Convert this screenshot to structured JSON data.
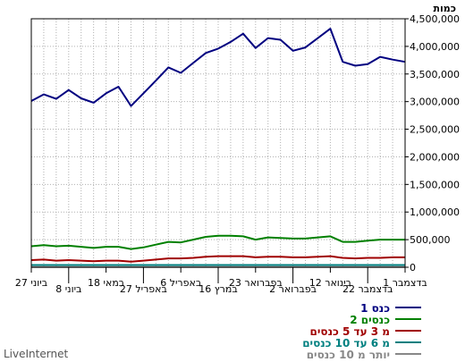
{
  "chart_data": {
    "type": "line",
    "unit_label": "כמות",
    "ylim": [
      0,
      4500000
    ],
    "y_ticks": [
      "0",
      "500,000",
      "1,000,000",
      "1,500,000",
      "2,000,000",
      "2,500,000",
      "3,000,000",
      "3,500,000",
      "4,000,000",
      "4,500,000"
    ],
    "grid": true,
    "x_labels_row1": [
      {
        "text": "1 בדצמבר",
        "week": 0
      },
      {
        "text": "12 בינואר",
        "week": 6
      },
      {
        "text": "23 בפברואר",
        "week": 12
      },
      {
        "text": "6 באפריל",
        "week": 18
      },
      {
        "text": "18 במאי",
        "week": 24
      },
      {
        "text": "27 ביוני",
        "week": 30
      }
    ],
    "x_labels_row2": [
      {
        "text": "22 בדצמבר",
        "week": 3
      },
      {
        "text": "2 בפברואר",
        "week": 9
      },
      {
        "text": "16 במרץ",
        "week": 15
      },
      {
        "text": "27 באפריל",
        "week": 21
      },
      {
        "text": "8 ביוני",
        "week": 27
      }
    ],
    "series": [
      {
        "name": "כנס 1",
        "color": "#000080",
        "values": [
          3720000,
          3760000,
          3810000,
          3680000,
          3650000,
          3720000,
          4320000,
          4150000,
          3980000,
          3920000,
          4120000,
          4150000,
          3970000,
          4230000,
          4080000,
          3960000,
          3880000,
          3700000,
          3520000,
          3620000,
          3380000,
          3150000,
          2920000,
          3270000,
          3150000,
          2980000,
          3060000,
          3210000,
          3050000,
          3130000,
          3010000
        ]
      },
      {
        "name": "2 כנסים",
        "color": "#008000",
        "values": [
          500000,
          500000,
          500000,
          480000,
          460000,
          460000,
          560000,
          540000,
          520000,
          520000,
          530000,
          540000,
          500000,
          560000,
          570000,
          570000,
          550000,
          500000,
          450000,
          460000,
          410000,
          360000,
          330000,
          370000,
          370000,
          350000,
          370000,
          390000,
          380000,
          400000,
          380000
        ]
      },
      {
        "name": "מ 3 עד 5 כנסים",
        "color": "#a00000",
        "values": [
          180000,
          180000,
          170000,
          170000,
          160000,
          170000,
          200000,
          190000,
          180000,
          180000,
          190000,
          190000,
          180000,
          200000,
          200000,
          200000,
          190000,
          170000,
          160000,
          160000,
          140000,
          120000,
          100000,
          120000,
          120000,
          110000,
          120000,
          130000,
          120000,
          140000,
          130000
        ]
      },
      {
        "name": "מ 6 עד 10 כנסים",
        "color": "#008080",
        "values": [
          40000,
          40000,
          40000,
          40000,
          40000,
          40000,
          40000,
          40000,
          40000,
          40000,
          40000,
          40000,
          40000,
          40000,
          40000,
          40000,
          40000,
          40000,
          40000,
          40000,
          40000,
          40000,
          40000,
          40000,
          40000,
          40000,
          40000,
          40000,
          40000,
          40000,
          40000
        ]
      },
      {
        "name": "יותר מ 10 כנסים",
        "color": "#888888",
        "values": [
          5000,
          5000,
          5000,
          5000,
          5000,
          5000,
          5000,
          5000,
          5000,
          5000,
          5000,
          5000,
          5000,
          5000,
          5000,
          5000,
          5000,
          5000,
          5000,
          5000,
          5000,
          5000,
          5000,
          5000,
          5000,
          5000,
          5000,
          5000,
          5000,
          5000,
          5000
        ]
      }
    ]
  },
  "footer": {
    "brand": "LiveInternet"
  }
}
